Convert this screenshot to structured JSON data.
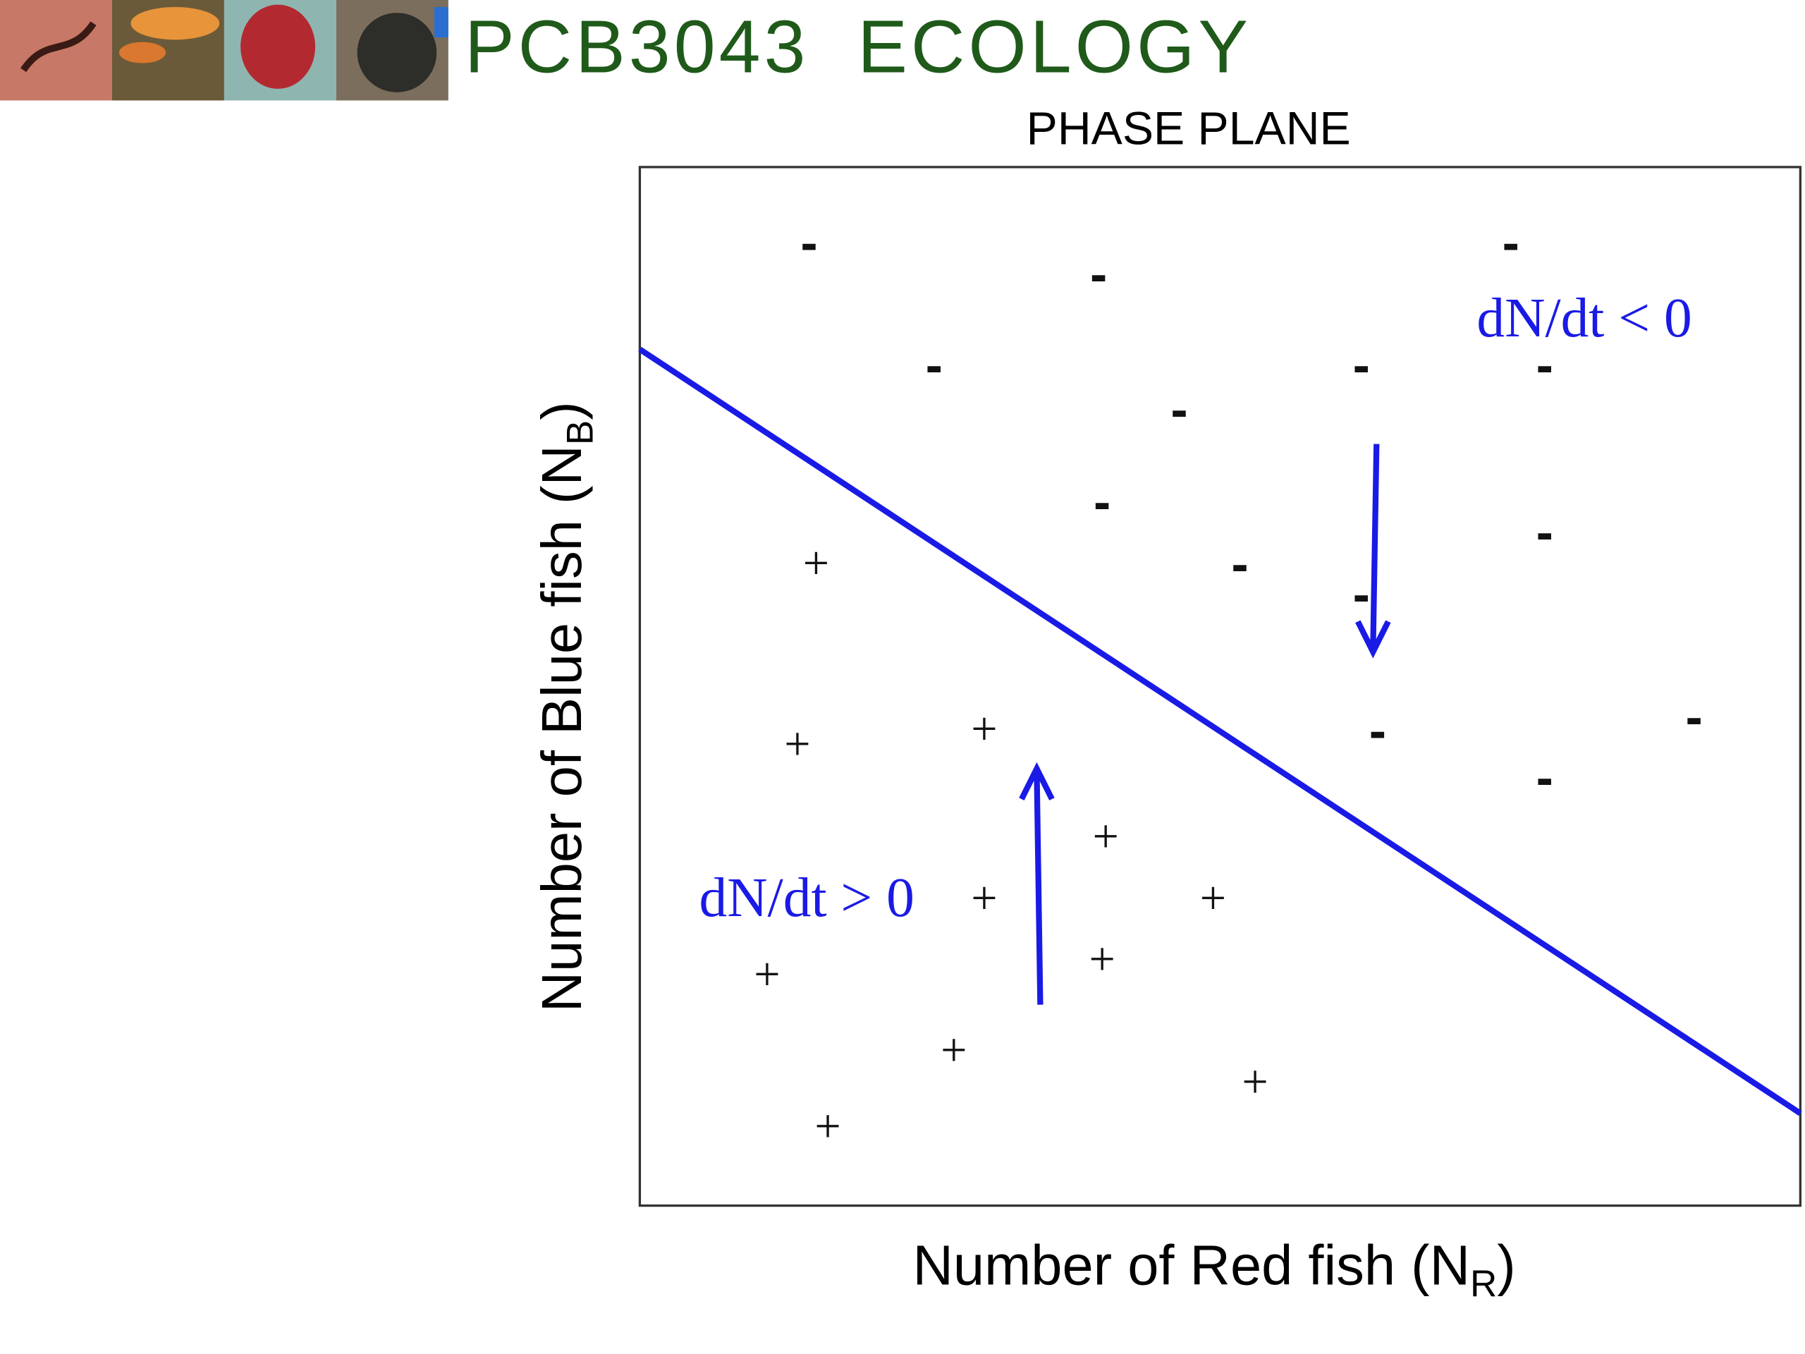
{
  "header": {
    "title": "PCB3043  ECOLOGY"
  },
  "diagram": {
    "title": "PHASE PLANE",
    "y_axis_label": {
      "text": "Number of Blue fish (N",
      "subscript": "B",
      "suffix": ")"
    },
    "x_axis_label": {
      "text": "Number of Red fish (N",
      "subscript": "R",
      "suffix": ")"
    },
    "negative_region": {
      "label": "dN/dt < 0",
      "signs": [
        "-",
        "-",
        "-",
        "-",
        "-",
        "-",
        "-",
        "-",
        "-",
        "-",
        "-",
        "-",
        "-",
        "-"
      ]
    },
    "positive_region": {
      "label": "dN/dt > 0",
      "signs": [
        "+",
        "+",
        "+",
        "+",
        "+",
        "+",
        "+",
        "+",
        "+",
        "+",
        "+"
      ]
    }
  }
}
